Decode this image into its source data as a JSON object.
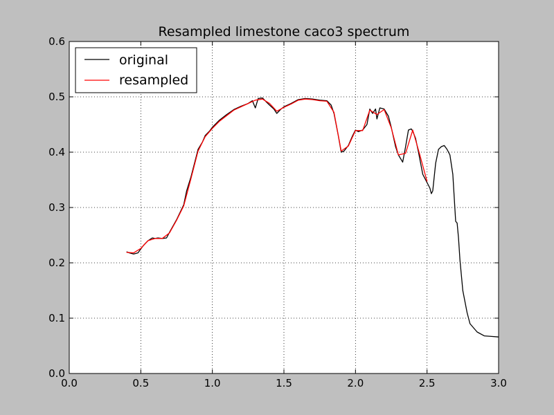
{
  "chart_data": {
    "type": "line",
    "title": "Resampled limestone caco3 spectrum",
    "xlabel": "",
    "ylabel": "",
    "xlim": [
      0.0,
      3.0
    ],
    "ylim": [
      0.0,
      0.6
    ],
    "xticks": [
      0.0,
      0.5,
      1.0,
      1.5,
      2.0,
      2.5,
      3.0
    ],
    "xtick_labels": [
      "0.0",
      "0.5",
      "1.0",
      "1.5",
      "2.0",
      "2.5",
      "3.0"
    ],
    "yticks": [
      0.0,
      0.1,
      0.2,
      0.3,
      0.4,
      0.5,
      0.6
    ],
    "ytick_labels": [
      "0.0",
      "0.1",
      "0.2",
      "0.3",
      "0.4",
      "0.5",
      "0.6"
    ],
    "grid": true,
    "legend_position": "top-left",
    "series": [
      {
        "name": "original",
        "color": "#000000",
        "x": [
          0.4,
          0.42,
          0.45,
          0.48,
          0.5,
          0.52,
          0.55,
          0.58,
          0.6,
          0.62,
          0.65,
          0.68,
          0.7,
          0.75,
          0.8,
          0.82,
          0.85,
          0.88,
          0.9,
          0.93,
          0.95,
          0.98,
          1.0,
          1.05,
          1.1,
          1.15,
          1.2,
          1.25,
          1.28,
          1.3,
          1.32,
          1.35,
          1.38,
          1.4,
          1.43,
          1.45,
          1.48,
          1.5,
          1.55,
          1.6,
          1.65,
          1.7,
          1.75,
          1.8,
          1.83,
          1.85,
          1.88,
          1.9,
          1.92,
          1.95,
          1.98,
          2.0,
          2.02,
          2.05,
          2.08,
          2.1,
          2.12,
          2.14,
          2.15,
          2.17,
          2.2,
          2.23,
          2.25,
          2.28,
          2.3,
          2.33,
          2.35,
          2.37,
          2.39,
          2.4,
          2.42,
          2.44,
          2.47,
          2.5,
          2.52,
          2.53,
          2.54,
          2.56,
          2.58,
          2.6,
          2.62,
          2.64,
          2.66,
          2.68,
          2.7,
          2.71,
          2.72,
          2.73,
          2.75,
          2.78,
          2.8,
          2.85,
          2.9,
          2.95,
          3.0
        ],
        "y": [
          0.22,
          0.218,
          0.216,
          0.218,
          0.225,
          0.232,
          0.24,
          0.245,
          0.244,
          0.245,
          0.244,
          0.245,
          0.255,
          0.278,
          0.305,
          0.33,
          0.355,
          0.385,
          0.405,
          0.418,
          0.43,
          0.438,
          0.445,
          0.458,
          0.468,
          0.477,
          0.483,
          0.488,
          0.493,
          0.48,
          0.497,
          0.498,
          0.49,
          0.485,
          0.478,
          0.47,
          0.478,
          0.482,
          0.488,
          0.495,
          0.497,
          0.496,
          0.494,
          0.493,
          0.485,
          0.47,
          0.43,
          0.4,
          0.402,
          0.412,
          0.43,
          0.44,
          0.437,
          0.44,
          0.45,
          0.478,
          0.47,
          0.478,
          0.46,
          0.48,
          0.478,
          0.465,
          0.445,
          0.41,
          0.395,
          0.382,
          0.41,
          0.44,
          0.442,
          0.438,
          0.425,
          0.4,
          0.36,
          0.345,
          0.335,
          0.325,
          0.33,
          0.38,
          0.405,
          0.41,
          0.412,
          0.405,
          0.395,
          0.36,
          0.275,
          0.272,
          0.245,
          0.205,
          0.15,
          0.11,
          0.09,
          0.075,
          0.068,
          0.067,
          0.066
        ]
      },
      {
        "name": "resampled",
        "color": "#ff0000",
        "x": [
          0.4,
          0.45,
          0.5,
          0.55,
          0.6,
          0.65,
          0.7,
          0.75,
          0.8,
          0.85,
          0.9,
          0.95,
          1.0,
          1.05,
          1.1,
          1.15,
          1.2,
          1.25,
          1.3,
          1.35,
          1.4,
          1.45,
          1.5,
          1.55,
          1.6,
          1.65,
          1.7,
          1.75,
          1.8,
          1.85,
          1.9,
          1.95,
          2.0,
          2.05,
          2.1,
          2.15,
          2.2,
          2.25,
          2.3,
          2.35,
          2.4,
          2.45,
          2.5
        ],
        "y": [
          0.219,
          0.218,
          0.226,
          0.24,
          0.244,
          0.244,
          0.254,
          0.277,
          0.303,
          0.352,
          0.402,
          0.428,
          0.443,
          0.456,
          0.466,
          0.476,
          0.482,
          0.488,
          0.494,
          0.496,
          0.488,
          0.474,
          0.481,
          0.487,
          0.494,
          0.496,
          0.495,
          0.493,
          0.492,
          0.472,
          0.402,
          0.411,
          0.439,
          0.439,
          0.476,
          0.468,
          0.477,
          0.444,
          0.395,
          0.398,
          0.44,
          0.395,
          0.347
        ]
      }
    ]
  }
}
